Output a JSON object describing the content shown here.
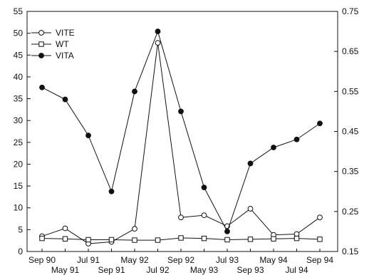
{
  "chart_data": {
    "type": "line",
    "categories": [
      "Sep 90",
      "May 91",
      "Jul 91",
      "Sep 91",
      "May 92",
      "Jul 92",
      "Sep 92",
      "May 93",
      "Jul 93",
      "Sep 93",
      "May 94",
      "Jul 94",
      "Sep 94"
    ],
    "series": [
      {
        "name": "VITE",
        "axis": "left",
        "marker": "open-circle",
        "values": [
          3.5,
          5.3,
          1.8,
          2.2,
          5.2,
          47.8,
          7.8,
          8.3,
          5.8,
          9.8,
          3.8,
          4.0,
          7.8
        ]
      },
      {
        "name": "WT",
        "axis": "left",
        "marker": "open-square",
        "values": [
          3.0,
          2.9,
          2.7,
          2.7,
          2.6,
          2.6,
          3.1,
          3.0,
          2.7,
          2.8,
          2.9,
          3.0,
          2.8
        ]
      },
      {
        "name": "VITA",
        "axis": "right",
        "marker": "filled-circle",
        "values": [
          0.56,
          0.53,
          0.44,
          0.3,
          0.55,
          0.7,
          0.5,
          0.31,
          0.2,
          0.37,
          0.41,
          0.43,
          0.47
        ]
      }
    ],
    "ylim_left": [
      0,
      55
    ],
    "yticks_left": [
      0,
      5,
      10,
      15,
      20,
      25,
      30,
      35,
      40,
      45,
      50,
      55
    ],
    "ylim_right": [
      0.15,
      0.75
    ],
    "yticks_right": [
      "0.15",
      "0.25",
      "0.35",
      "0.45",
      "0.55",
      "0.65",
      "0.75"
    ],
    "grid": false,
    "legend_position": "top-left",
    "colors": {
      "line": "#111111",
      "background": "#ffffff"
    }
  }
}
